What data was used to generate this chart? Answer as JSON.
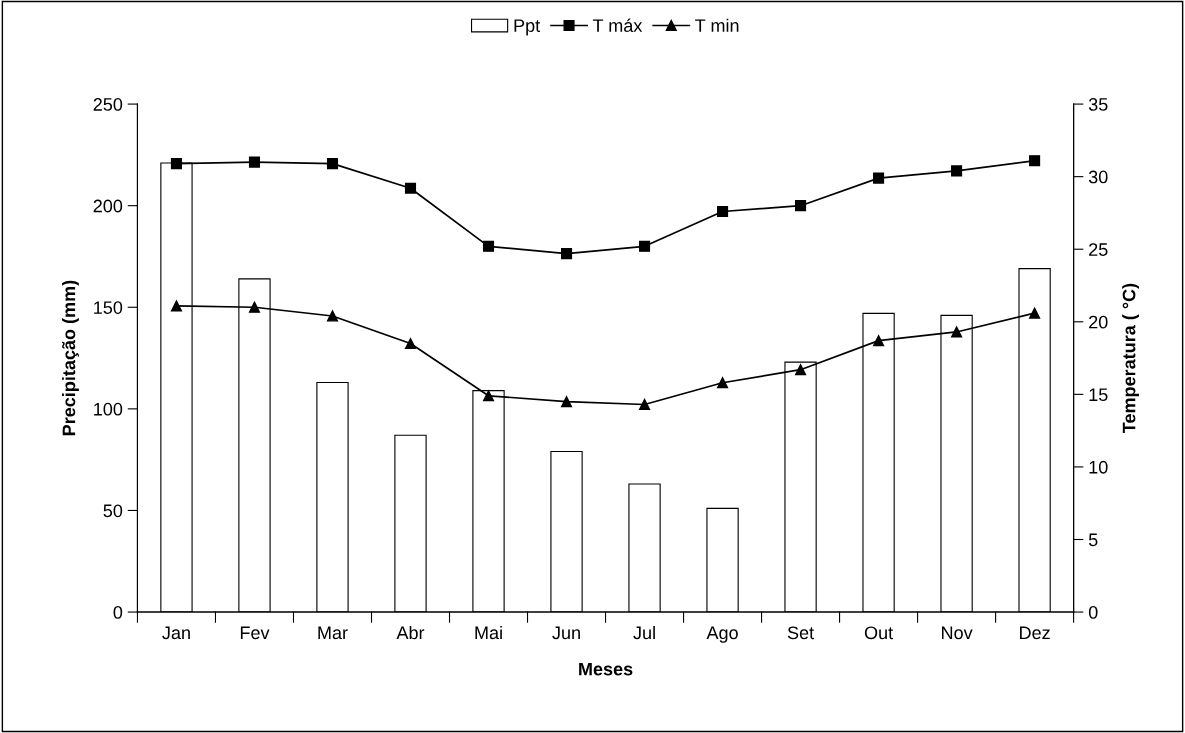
{
  "chart_data": {
    "type": "bar",
    "xlabel": "Meses",
    "ylabel": "Precipitação (mm)",
    "y2label": "Temperatura ( °C)",
    "categories": [
      "Jan",
      "Fev",
      "Mar",
      "Abr",
      "Mai",
      "Jun",
      "Jul",
      "Ago",
      "Set",
      "Out",
      "Nov",
      "Dez"
    ],
    "series": [
      {
        "name": "Ppt",
        "color": "#ffffff",
        "values": [
          221,
          164,
          113,
          87,
          109,
          79,
          63,
          51,
          123,
          147,
          146,
          169
        ]
      },
      {
        "name": "T máx",
        "type": "line",
        "axis": "y2",
        "marker": "square",
        "color": "#000000",
        "values": [
          30.9,
          31.0,
          30.9,
          29.2,
          25.2,
          24.7,
          25.2,
          27.6,
          28.0,
          29.9,
          30.4,
          31.1
        ]
      },
      {
        "name": "T min",
        "type": "line",
        "axis": "y2",
        "marker": "triangle",
        "color": "#000000",
        "values": [
          21.1,
          21.0,
          20.4,
          18.5,
          14.9,
          14.5,
          14.3,
          15.8,
          16.7,
          18.7,
          19.3,
          20.6
        ]
      }
    ],
    "ylim": [
      0,
      250
    ],
    "yticks": [
      0,
      50,
      100,
      150,
      200,
      250
    ],
    "y2lim": [
      0,
      35
    ],
    "y2ticks": [
      0,
      5,
      10,
      15,
      20,
      25,
      30,
      35
    ],
    "legend": "top",
    "grid": false
  }
}
